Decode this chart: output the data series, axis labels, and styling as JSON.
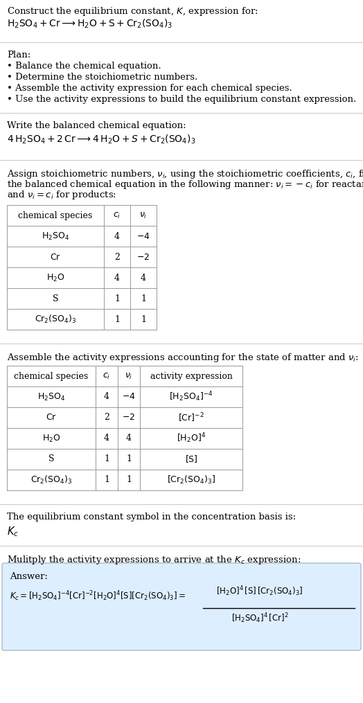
{
  "bg_color": "#ffffff",
  "text_color": "#000000",
  "title_line1": "Construct the equilibrium constant, $K$, expression for:",
  "title_line2": "$\\mathrm{H_2SO_4 + Cr \\longrightarrow H_2O + S + Cr_2(SO_4)_3}$",
  "plan_header": "Plan:",
  "plan_items": [
    "• Balance the chemical equation.",
    "• Determine the stoichiometric numbers.",
    "• Assemble the activity expression for each chemical species.",
    "• Use the activity expressions to build the equilibrium constant expression."
  ],
  "balanced_header": "Write the balanced chemical equation:",
  "balanced_eq": "$4\\,\\mathrm{H_2SO_4} + 2\\,\\mathrm{Cr} \\longrightarrow 4\\,\\mathrm{H_2O} + S + \\mathrm{Cr_2(SO_4)_3}$",
  "stoich_header_parts": [
    "Assign stoichiometric numbers, $\\nu_i$, using the stoichiometric coefficients, $c_i$, from",
    "the balanced chemical equation in the following manner: $\\nu_i = -c_i$ for reactants",
    "and $\\nu_i = c_i$ for products:"
  ],
  "table1_headers": [
    "chemical species",
    "$c_i$",
    "$\\nu_i$"
  ],
  "table1_rows": [
    [
      "$\\mathrm{H_2SO_4}$",
      "4",
      "$-4$"
    ],
    [
      "$\\mathrm{Cr}$",
      "2",
      "$-2$"
    ],
    [
      "$\\mathrm{H_2O}$",
      "4",
      "4"
    ],
    [
      "S",
      "1",
      "1"
    ],
    [
      "$\\mathrm{Cr_2(SO_4)_3}$",
      "1",
      "1"
    ]
  ],
  "activity_header": "Assemble the activity expressions accounting for the state of matter and $\\nu_i$:",
  "table2_headers": [
    "chemical species",
    "$c_i$",
    "$\\nu_i$",
    "activity expression"
  ],
  "table2_rows": [
    [
      "$\\mathrm{H_2SO_4}$",
      "4",
      "$-4$",
      "$[\\mathrm{H_2SO_4}]^{-4}$"
    ],
    [
      "$\\mathrm{Cr}$",
      "2",
      "$-2$",
      "$[\\mathrm{Cr}]^{-2}$"
    ],
    [
      "$\\mathrm{H_2O}$",
      "4",
      "4",
      "$[\\mathrm{H_2O}]^{4}$"
    ],
    [
      "S",
      "1",
      "1",
      "$[\\mathrm{S}]$"
    ],
    [
      "$\\mathrm{Cr_2(SO_4)_3}$",
      "1",
      "1",
      "$[\\mathrm{Cr_2(SO_4)_3}]$"
    ]
  ],
  "kc_header": "The equilibrium constant symbol in the concentration basis is:",
  "kc_symbol": "$K_c$",
  "multiply_header": "Mulitply the activity expressions to arrive at the $K_c$ expression:",
  "answer_label": "Answer:",
  "answer_box_color": "#ddeeff",
  "answer_box_border": "#aabbcc",
  "div_color": "#cccccc"
}
